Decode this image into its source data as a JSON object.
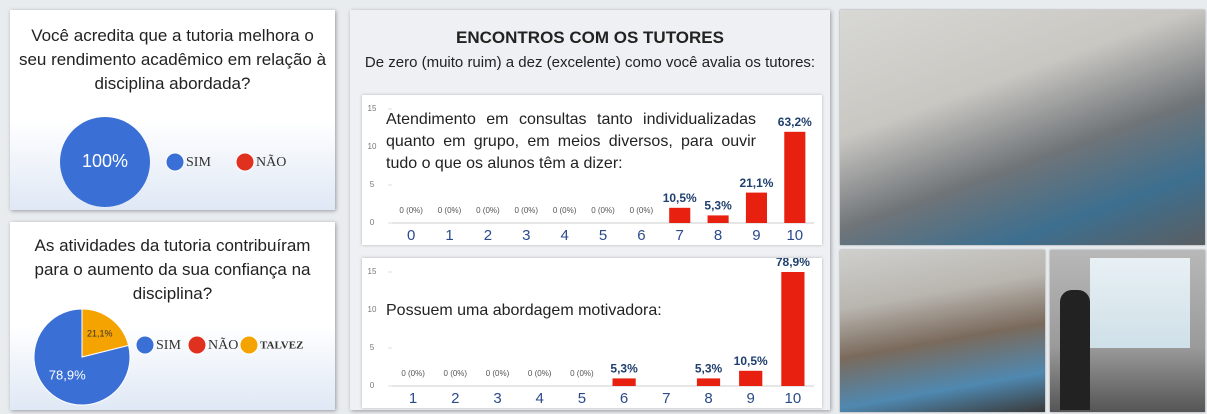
{
  "header": {
    "title": "ENCONTROS COM OS TUTORES",
    "subtitle": "De zero (muito ruim) a dez (excelente) como você avalia os tutores:"
  },
  "chart_data": [
    {
      "type": "pie",
      "title": "Você acredita que a tutoria melhora o seu rendimento acadêmico em relação à disciplina abordada?",
      "categories": [
        "SIM",
        "NÃO"
      ],
      "values": [
        100,
        0
      ],
      "value_labels": [
        "100%",
        null
      ],
      "colors": [
        "#3a6fd6",
        "#e0301e"
      ]
    },
    {
      "type": "pie",
      "title": "As atividades da tutoria contribuíram para o aumento da sua confiança na disciplina?",
      "categories": [
        "SIM",
        "NÃO",
        "TALVEZ"
      ],
      "values": [
        78.9,
        0,
        21.1
      ],
      "value_labels": [
        "78,9%",
        null,
        "21,1%"
      ],
      "colors": [
        "#3a6fd6",
        "#e0301e",
        "#f5a300"
      ]
    },
    {
      "type": "bar",
      "annotation": "Atendimento em consultas tanto individualizadas quanto em grupo, em meios diversos, para ouvir tudo o que os alunos têm a dizer:",
      "categories": [
        "0",
        "1",
        "2",
        "3",
        "4",
        "5",
        "6",
        "7",
        "8",
        "9",
        "10"
      ],
      "values": [
        0,
        0,
        0,
        0,
        0,
        0,
        0,
        2,
        1,
        4,
        12
      ],
      "value_labels": [
        "0 (0%)",
        "0 (0%)",
        "0 (0%)",
        "0 (0%)",
        "0 (0%)",
        "0 (0%)",
        "0 (0%)",
        "10,5%",
        "5,3%",
        "21,1%",
        "63,2%"
      ],
      "color": "#e8200f",
      "ylim": [
        0,
        15
      ],
      "yticks": [
        0,
        5,
        10,
        15
      ]
    },
    {
      "type": "bar",
      "annotation": "Possuem uma abordagem motivadora:",
      "categories": [
        "1",
        "2",
        "3",
        "4",
        "5",
        "6",
        "7",
        "8",
        "9",
        "10"
      ],
      "values": [
        0,
        0,
        0,
        0,
        0,
        1,
        0,
        1,
        2,
        15
      ],
      "value_labels": [
        "0 (0%)",
        "0 (0%)",
        "0 (0%)",
        "0 (0%)",
        "0 (0%)",
        "5,3%",
        null,
        "5,3%",
        "10,5%",
        "78,9%"
      ],
      "color": "#e8200f",
      "ylim": [
        0,
        15
      ],
      "yticks": [
        0,
        5,
        10,
        15
      ]
    }
  ]
}
